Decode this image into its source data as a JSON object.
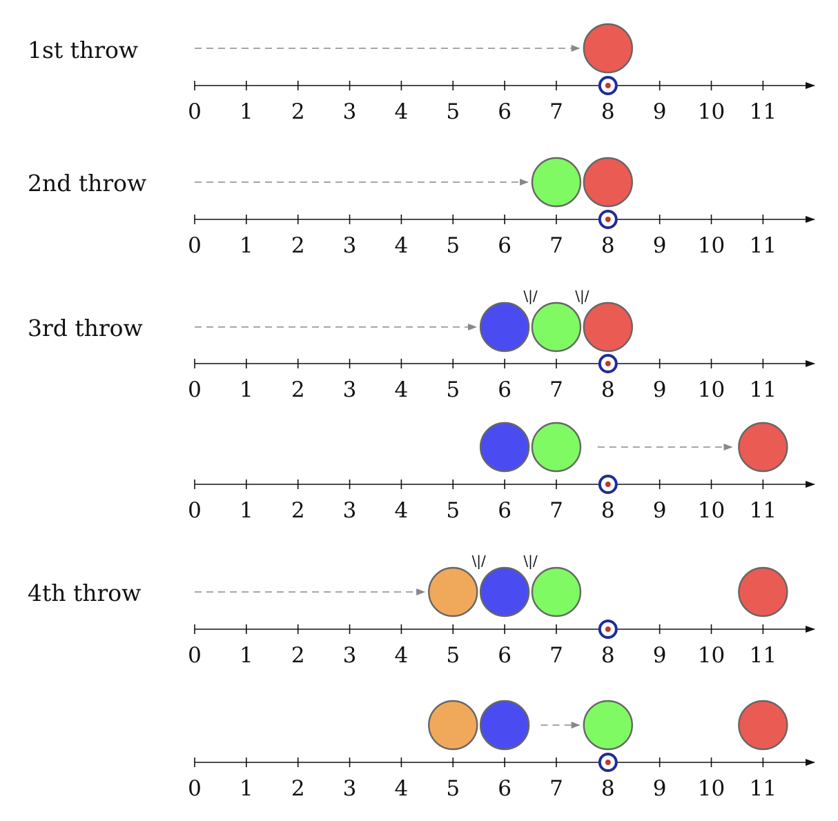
{
  "axis": {
    "min": 0,
    "max": 11,
    "target_position": 8,
    "tick_labels": [
      "0",
      "1",
      "2",
      "3",
      "4",
      "5",
      "6",
      "7",
      "8",
      "9",
      "10",
      "11"
    ]
  },
  "colors": {
    "red": "#ea5b54",
    "green": "#80fa63",
    "blue": "#4a4cf2",
    "orange": "#f0a95a",
    "ball_stroke": "#666666",
    "arrow": "#888888",
    "target_ring": "#1f2d96",
    "target_dot": "#c0392b"
  },
  "collision_mark": "\\|/",
  "rows": [
    {
      "label": "1st throw",
      "balls": [
        {
          "color": "red",
          "pos": 8
        }
      ],
      "arrow": {
        "from": 0,
        "to": 7.45
      },
      "collisions": []
    },
    {
      "label": "2nd throw",
      "balls": [
        {
          "color": "green",
          "pos": 7
        },
        {
          "color": "red",
          "pos": 8
        }
      ],
      "arrow": {
        "from": 0,
        "to": 6.45
      },
      "collisions": []
    },
    {
      "label": "3rd throw",
      "balls": [
        {
          "color": "blue",
          "pos": 6
        },
        {
          "color": "green",
          "pos": 7
        },
        {
          "color": "red",
          "pos": 8
        }
      ],
      "arrow": {
        "from": 0,
        "to": 5.45
      },
      "collisions": [
        6.5,
        7.5
      ]
    },
    {
      "label": "",
      "balls": [
        {
          "color": "blue",
          "pos": 6
        },
        {
          "color": "green",
          "pos": 7
        },
        {
          "color": "red",
          "pos": 11
        }
      ],
      "arrow": {
        "from": 7.8,
        "to": 10.4
      },
      "collisions": []
    },
    {
      "label": "4th throw",
      "balls": [
        {
          "color": "orange",
          "pos": 5
        },
        {
          "color": "blue",
          "pos": 6
        },
        {
          "color": "green",
          "pos": 7
        },
        {
          "color": "red",
          "pos": 11
        }
      ],
      "arrow": {
        "from": 0,
        "to": 4.45
      },
      "collisions": [
        5.5,
        6.5
      ]
    },
    {
      "label": "",
      "balls": [
        {
          "color": "orange",
          "pos": 5
        },
        {
          "color": "blue",
          "pos": 6
        },
        {
          "color": "green",
          "pos": 8
        },
        {
          "color": "red",
          "pos": 11
        }
      ],
      "arrow": {
        "from": 6.7,
        "to": 7.45
      },
      "collisions": []
    }
  ]
}
